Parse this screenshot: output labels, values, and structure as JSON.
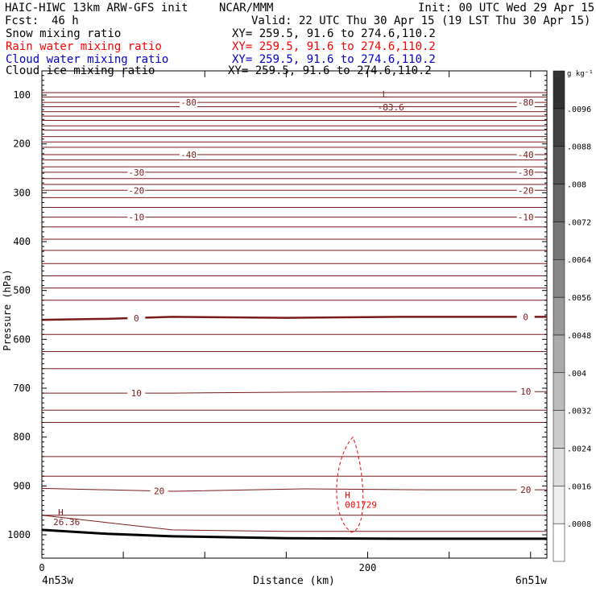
{
  "header": {
    "title": "HAIC-HIWC 13km ARW-GFS init",
    "center": "NCAR/MMM",
    "init": "Init: 00 UTC Wed 29 Apr 15",
    "fcst_label": "Fcst:",
    "fcst_value": "46 h",
    "valid": "Valid: 22 UTC Thu 30 Apr 15 (19 LST Thu 30 Apr 15)"
  },
  "fields": [
    {
      "name": "Snow mixing ratio",
      "xy": "XY= 259.5, 91.6 to 274.6,110.2",
      "color": "#000000"
    },
    {
      "name": "Rain water mixing ratio",
      "xy": "XY= 259.5, 91.6 to 274.6,110.2",
      "color": "#ff0000"
    },
    {
      "name": "Cloud water mixing ratio",
      "xy": "XY= 259.5, 91.6 to 274.6,110.2",
      "color": "#0000cc"
    },
    {
      "name": "Cloud ice mixing ratio",
      "xy": "XY= 259.5, 91.6 to 274.6,110.2",
      "color": "#000000"
    }
  ],
  "chart_data": {
    "type": "line",
    "xlabel": "Distance (km)",
    "ylabel": "Pressure (hPa)",
    "xlim": [
      0,
      310
    ],
    "ylim_pressure": [
      1050,
      50
    ],
    "y_ticks": [
      100,
      200,
      300,
      400,
      500,
      600,
      700,
      800,
      900,
      1000
    ],
    "x_ticks": [
      0,
      200
    ],
    "x_end_labels": {
      "left": "4n53w",
      "right": "6n51w"
    },
    "isotherm_color": "#7a1a1a",
    "isotherms": [
      {
        "label": "-80",
        "points": [
          [
            0,
            115
          ],
          [
            310,
            115
          ]
        ],
        "label_x": [
          90,
          297
        ]
      },
      {
        "label": "-40",
        "points": [
          [
            0,
            222
          ],
          [
            310,
            222
          ]
        ],
        "label_x": [
          90,
          297
        ]
      },
      {
        "label": "-30",
        "points": [
          [
            0,
            258
          ],
          [
            310,
            258
          ]
        ],
        "label_x": [
          58,
          297
        ]
      },
      {
        "label": "-20",
        "points": [
          [
            0,
            295
          ],
          [
            310,
            295
          ]
        ],
        "label_x": [
          58,
          297
        ]
      },
      {
        "label": "-10",
        "points": [
          [
            0,
            350
          ],
          [
            310,
            350
          ]
        ],
        "label_x": [
          58,
          297
        ]
      },
      {
        "label": "0",
        "points": [
          [
            0,
            560
          ],
          [
            40,
            558
          ],
          [
            80,
            554
          ],
          [
            150,
            556
          ],
          [
            220,
            554
          ],
          [
            310,
            554
          ]
        ],
        "label_x": [
          58,
          297
        ],
        "bold": true
      },
      {
        "label": "10",
        "points": [
          [
            0,
            710
          ],
          [
            80,
            710
          ],
          [
            160,
            708
          ],
          [
            240,
            707
          ],
          [
            310,
            707
          ]
        ],
        "label_x": [
          58,
          297
        ]
      },
      {
        "label": "20",
        "points": [
          [
            0,
            905
          ],
          [
            80,
            911
          ],
          [
            160,
            906
          ],
          [
            240,
            908
          ],
          [
            310,
            908
          ]
        ],
        "label_x": [
          72,
          297
        ]
      }
    ],
    "rain_max": {
      "label": "H",
      "value": "001729",
      "x": 187,
      "p": 958
    },
    "temp_max": {
      "label": "H",
      "value": "26.36",
      "x": 8,
      "p": 980
    },
    "temp_min": {
      "label": "L",
      "value": "-83.6",
      "x": 206,
      "p": 110
    },
    "colorbar": {
      "unit": "g kg⁻¹",
      "ticks": [
        ".0008",
        ".0016",
        ".0024",
        ".0032",
        ".004",
        ".0048",
        ".0056",
        ".0064",
        ".0072",
        ".008",
        ".0088",
        ".0096"
      ]
    }
  }
}
